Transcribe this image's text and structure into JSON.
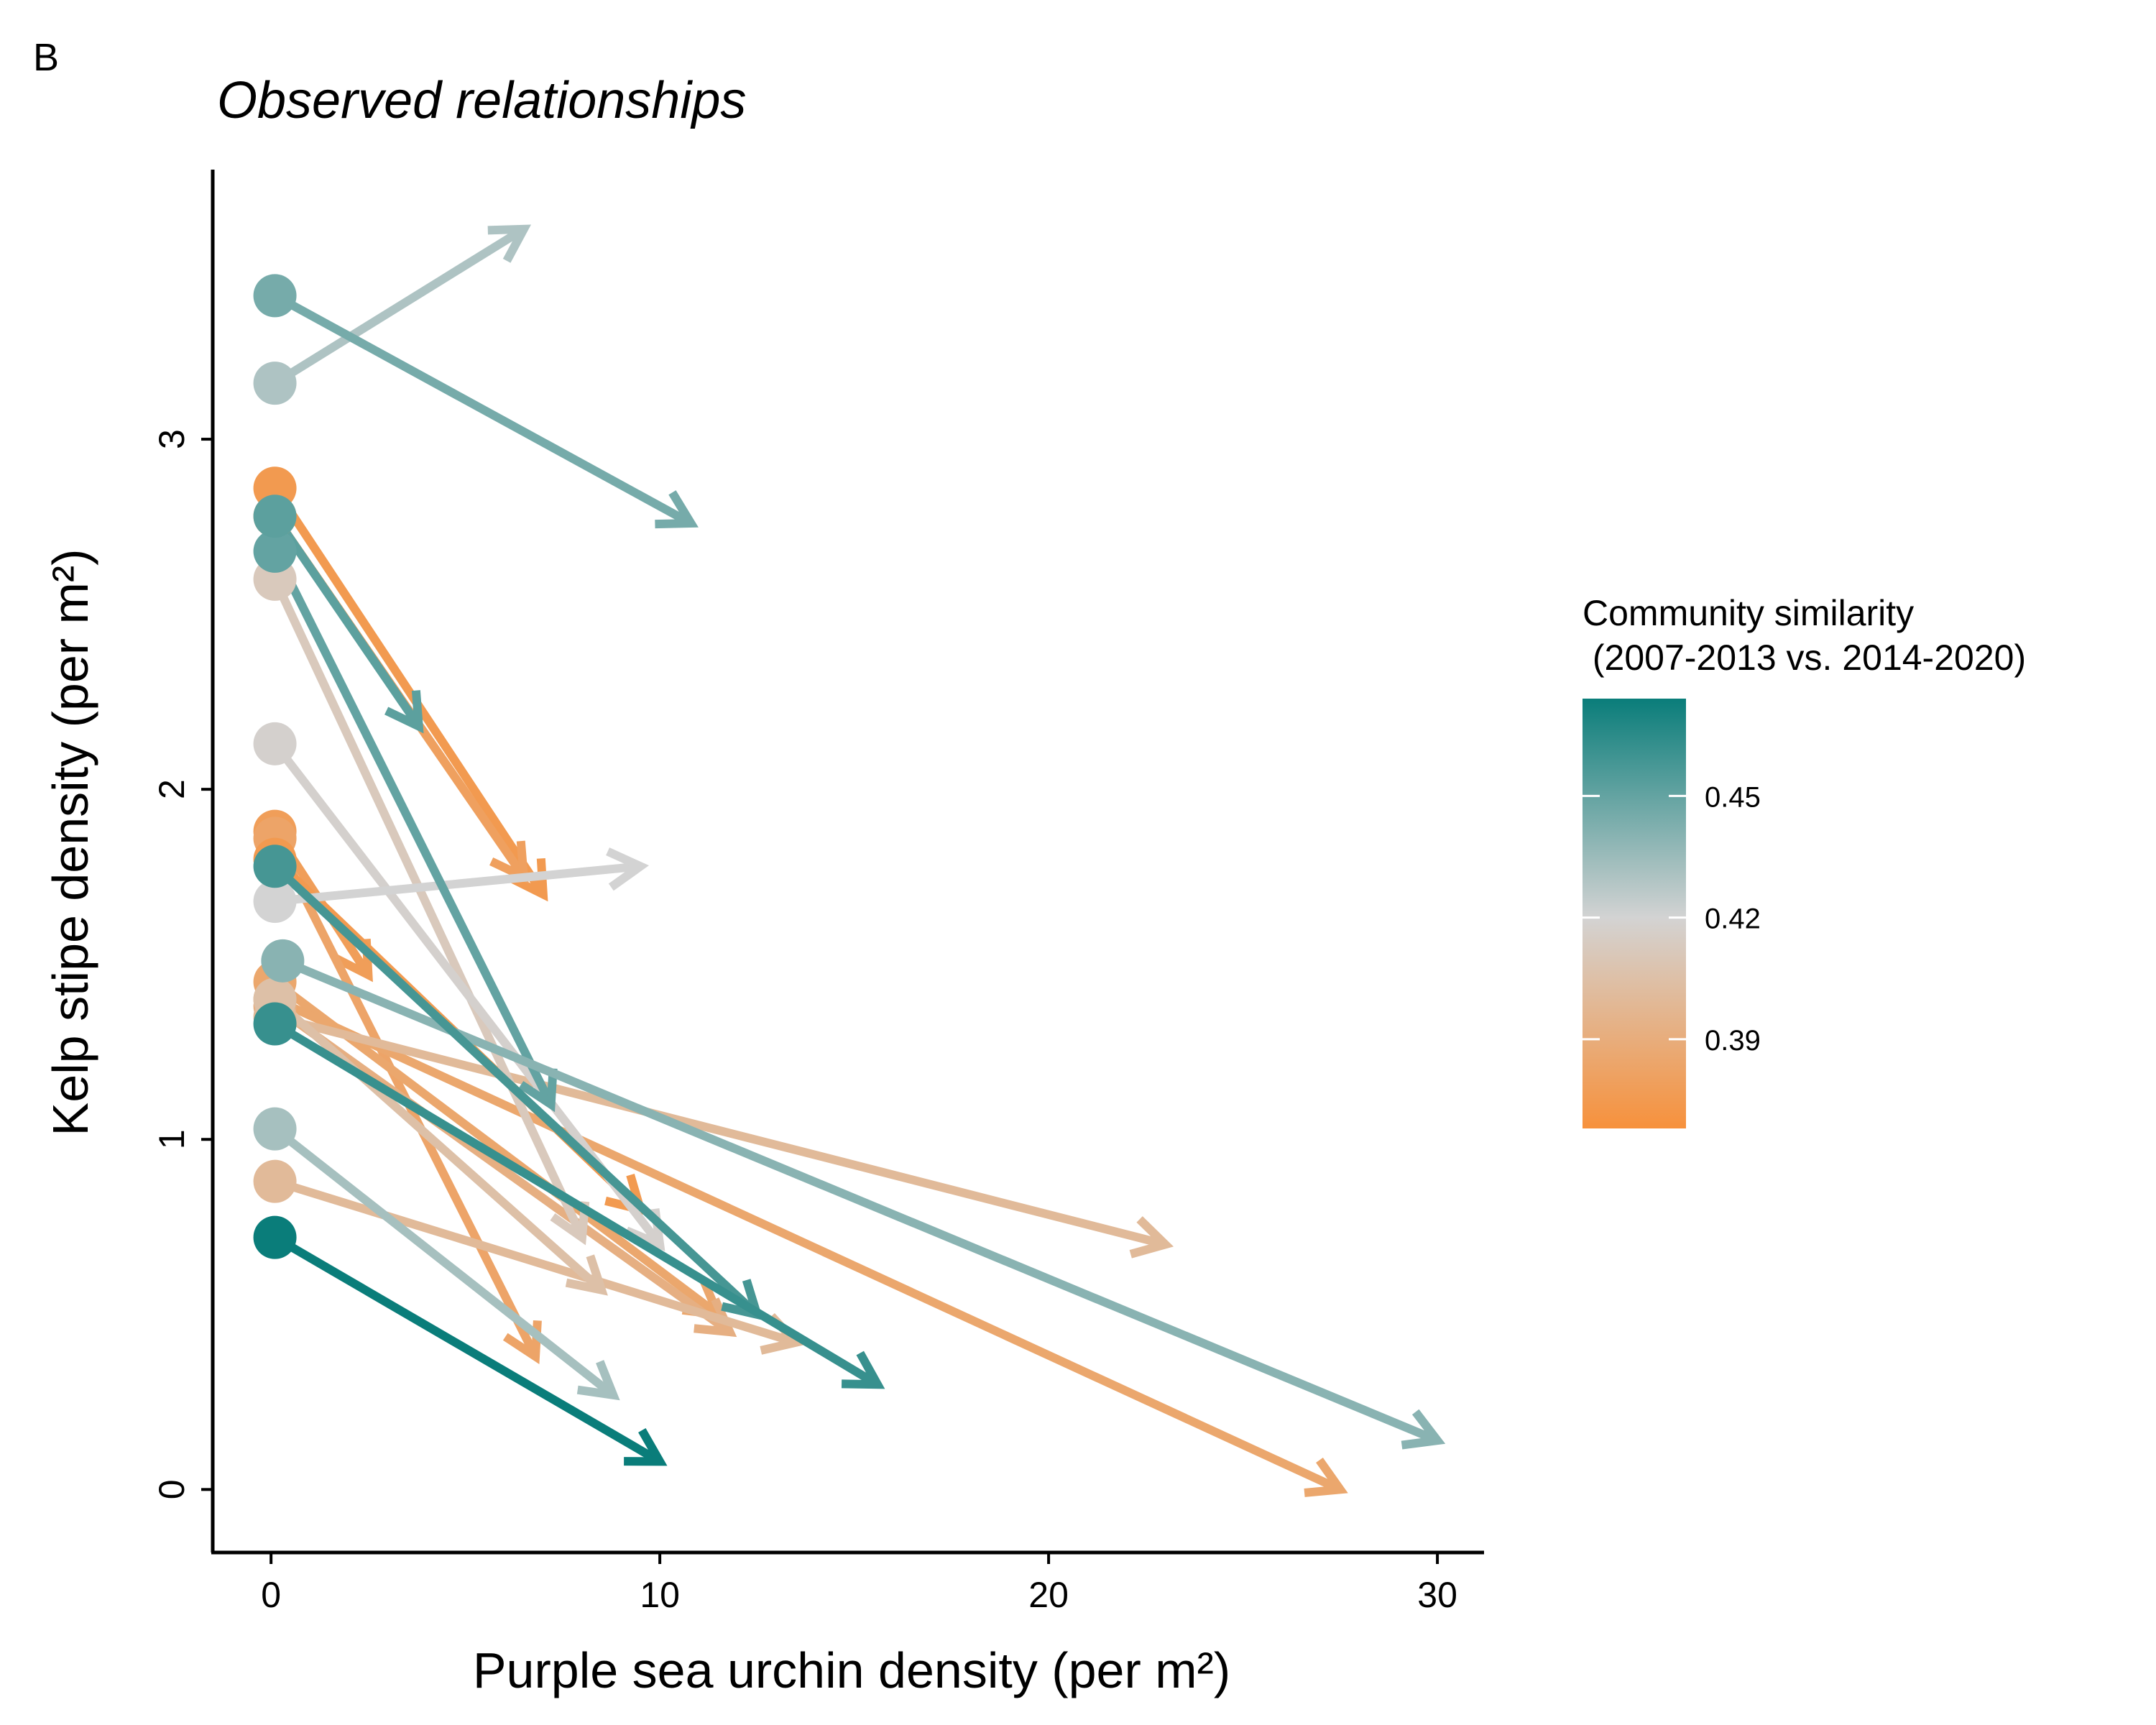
{
  "panel_label": "B",
  "chart_data": {
    "type": "scatter",
    "title": "Observed relationships",
    "xlabel": "Purple sea urchin density (per m²)",
    "ylabel": "Kelp stipe density (per m²)",
    "xlim": [
      -1.5,
      31.2
    ],
    "ylim": [
      -0.18,
      3.77
    ],
    "x_ticks": [
      0,
      10,
      20,
      30
    ],
    "y_ticks": [
      0,
      1,
      2,
      3
    ],
    "grid": false,
    "legend": {
      "title_line1": "Community similarity",
      "title_line2": " (2007-2013 vs. 2014-2020)",
      "placement": "right",
      "range": [
        0.368,
        0.474
      ],
      "ticks": [
        0.39,
        0.42,
        0.45
      ],
      "tick_labels": [
        "0.39",
        "0.42",
        "0.45"
      ],
      "low_color": "#f7913c",
      "mid_color": "#d3d3d3",
      "high_color": "#0a7d7a"
    },
    "series": [
      {
        "x_start": 0.1,
        "y_start": 2.86,
        "x_end": 7.0,
        "y_end": 1.7,
        "similarity": 0.375
      },
      {
        "x_start": 0.1,
        "y_start": 2.78,
        "x_end": 6.5,
        "y_end": 1.75,
        "similarity": 0.38
      },
      {
        "x_start": 0.1,
        "y_start": 1.88,
        "x_end": 2.5,
        "y_end": 1.47,
        "similarity": 0.378
      },
      {
        "x_start": 0.1,
        "y_start": 1.86,
        "x_end": 6.8,
        "y_end": 0.38,
        "similarity": 0.383
      },
      {
        "x_start": 0.1,
        "y_start": 1.8,
        "x_end": 9.5,
        "y_end": 0.8,
        "similarity": 0.375
      },
      {
        "x_start": 0.1,
        "y_start": 1.45,
        "x_end": 11.5,
        "y_end": 0.5,
        "similarity": 0.385
      },
      {
        "x_start": 0.1,
        "y_start": 1.4,
        "x_end": 27.5,
        "y_end": 0.0,
        "similarity": 0.385
      },
      {
        "x_start": 0.1,
        "y_start": 1.38,
        "x_end": 11.8,
        "y_end": 0.45,
        "similarity": 0.392
      },
      {
        "x_start": 0.1,
        "y_start": 1.35,
        "x_end": 23.0,
        "y_end": 0.7,
        "similarity": 0.4
      },
      {
        "x_start": 0.1,
        "y_start": 0.88,
        "x_end": 13.5,
        "y_end": 0.42,
        "similarity": 0.4
      },
      {
        "x_start": 0.1,
        "y_start": 1.4,
        "x_end": 8.5,
        "y_end": 0.57,
        "similarity": 0.405
      },
      {
        "x_start": 0.1,
        "y_start": 2.6,
        "x_end": 8.0,
        "y_end": 0.72,
        "similarity": 0.412
      },
      {
        "x_start": 0.1,
        "y_start": 2.13,
        "x_end": 10.0,
        "y_end": 0.7,
        "similarity": 0.418
      },
      {
        "x_start": 0.1,
        "y_start": 1.68,
        "x_end": 9.5,
        "y_end": 1.78,
        "similarity": 0.42
      },
      {
        "x_start": 0.1,
        "y_start": 3.16,
        "x_end": 6.5,
        "y_end": 3.6,
        "similarity": 0.43
      },
      {
        "x_start": 0.1,
        "y_start": 1.03,
        "x_end": 8.8,
        "y_end": 0.27,
        "similarity": 0.432
      },
      {
        "x_start": 0.1,
        "y_start": 2.68,
        "x_end": 7.2,
        "y_end": 1.1,
        "similarity": 0.45
      },
      {
        "x_start": 0.1,
        "y_start": 2.78,
        "x_end": 3.8,
        "y_end": 2.18,
        "similarity": 0.452
      },
      {
        "x_start": 0.3,
        "y_start": 1.51,
        "x_end": 30.0,
        "y_end": 0.14,
        "similarity": 0.44
      },
      {
        "x_start": 0.1,
        "y_start": 3.41,
        "x_end": 10.8,
        "y_end": 2.76,
        "similarity": 0.445
      },
      {
        "x_start": 0.1,
        "y_start": 1.78,
        "x_end": 12.5,
        "y_end": 0.5,
        "similarity": 0.458
      },
      {
        "x_start": 0.1,
        "y_start": 1.33,
        "x_end": 15.6,
        "y_end": 0.3,
        "similarity": 0.462
      },
      {
        "x_start": 0.1,
        "y_start": 0.72,
        "x_end": 10.0,
        "y_end": 0.08,
        "similarity": 0.474
      }
    ]
  }
}
